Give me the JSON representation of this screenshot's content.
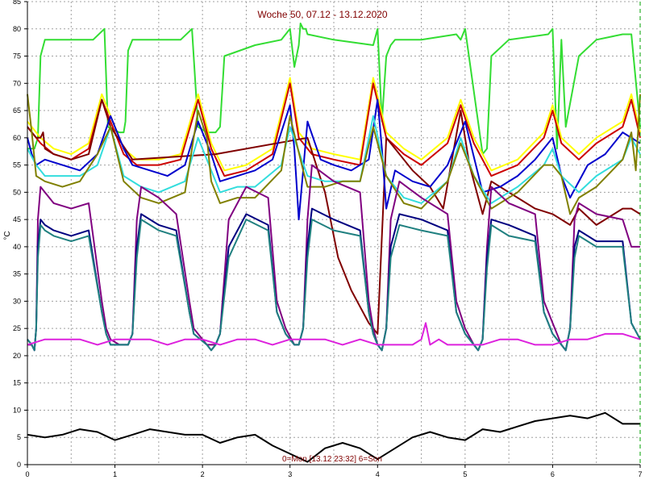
{
  "chart_data": {
    "type": "line",
    "title": "Woche 50, 07.12 - 13.12.2020",
    "ylabel": "°C",
    "footer": "0=Mon [13.12 23:32] 6=Son",
    "xlim": [
      0,
      7
    ],
    "ylim": [
      0,
      85
    ],
    "x_ticks": [
      0,
      1,
      2,
      3,
      4,
      5,
      6,
      7
    ],
    "y_ticks": [
      0,
      5,
      10,
      15,
      20,
      25,
      30,
      35,
      40,
      45,
      50,
      55,
      60,
      65,
      70,
      75,
      80,
      85
    ],
    "grid": true,
    "x_gridlines": [
      0.5,
      1,
      1.5,
      2,
      2.5,
      3,
      3.5,
      4,
      4.5,
      5,
      5.5,
      6,
      6.5
    ],
    "current_time_x": 7.0,
    "colors": {
      "axis": "#000000",
      "grid": "#a0a0a0",
      "title": "#800000",
      "now_line": "#00a000"
    },
    "series": [
      {
        "color": "#33dd33",
        "x": [
          0.0,
          0.08,
          0.12,
          0.15,
          0.2,
          0.45,
          0.75,
          0.88,
          0.92,
          1.05,
          1.1,
          1.12,
          1.15,
          1.2,
          1.45,
          1.75,
          1.88,
          1.95,
          2.05,
          2.15,
          2.2,
          2.25,
          2.6,
          2.9,
          3.0,
          3.05,
          3.1,
          3.12,
          3.15,
          3.18,
          3.2,
          3.5,
          3.95,
          4.0,
          4.05,
          4.1,
          4.15,
          4.2,
          4.5,
          4.9,
          4.95,
          5.0,
          5.2,
          5.25,
          5.3,
          5.5,
          5.95,
          6.0,
          6.05,
          6.1,
          6.15,
          6.3,
          6.5,
          6.8,
          6.9,
          7.0
        ],
        "y": [
          58,
          58,
          60,
          75,
          78,
          78,
          78,
          80,
          62,
          61,
          61,
          63,
          76,
          78,
          78,
          78,
          80,
          62,
          61,
          61,
          62,
          75,
          77,
          78,
          80,
          73,
          77,
          81,
          80,
          80,
          79,
          78,
          77,
          80,
          63,
          75,
          77,
          78,
          78,
          79,
          78,
          80,
          57,
          58,
          75,
          78,
          79,
          80,
          58,
          78,
          62,
          75,
          78,
          79,
          79,
          62
        ]
      },
      {
        "color": "#ffff00",
        "x": [
          0.0,
          0.1,
          0.15,
          0.3,
          0.5,
          0.7,
          0.85,
          0.95,
          1.1,
          1.25,
          1.5,
          1.75,
          1.95,
          2.1,
          2.25,
          2.5,
          2.8,
          3.0,
          3.1,
          3.25,
          3.5,
          3.8,
          3.95,
          4.1,
          4.3,
          4.5,
          4.8,
          4.95,
          5.1,
          5.3,
          5.6,
          5.9,
          6.0,
          6.1,
          6.3,
          6.5,
          6.8,
          6.9,
          7.0
        ],
        "y": [
          63,
          61,
          60,
          58,
          57,
          59,
          68,
          64,
          58,
          56,
          56,
          57,
          68,
          59,
          54,
          55,
          58,
          71,
          61,
          58,
          57,
          56,
          71,
          61,
          58,
          56,
          60,
          67,
          60,
          54,
          56,
          61,
          66,
          60,
          57,
          60,
          63,
          68,
          61
        ]
      },
      {
        "color": "#cc0000",
        "x": [
          0.0,
          0.1,
          0.15,
          0.3,
          0.5,
          0.7,
          0.85,
          0.95,
          1.1,
          1.25,
          1.5,
          1.75,
          1.95,
          2.1,
          2.25,
          2.5,
          2.8,
          3.0,
          3.1,
          3.25,
          3.5,
          3.8,
          3.95,
          4.1,
          4.3,
          4.5,
          4.8,
          4.95,
          5.1,
          5.3,
          5.6,
          5.9,
          6.0,
          6.1,
          6.3,
          6.5,
          6.8,
          6.9,
          7.0
        ],
        "y": [
          62,
          60,
          59,
          57,
          56,
          58,
          67,
          63,
          57,
          55,
          55,
          56,
          67,
          58,
          53,
          54,
          57,
          70,
          60,
          57,
          56,
          55,
          70,
          60,
          57,
          55,
          59,
          66,
          59,
          53,
          55,
          60,
          65,
          59,
          56,
          59,
          62,
          67,
          60
        ]
      },
      {
        "color": "#800000",
        "x": [
          0.0,
          0.05,
          0.1,
          0.15,
          0.18,
          0.2,
          0.3,
          0.5,
          0.7,
          0.85,
          0.95,
          1.2,
          2.15,
          3.2,
          3.4,
          3.55,
          3.7,
          3.9,
          4.0,
          4.1,
          4.2,
          4.4,
          4.6,
          4.75,
          4.95,
          5.05,
          5.2,
          5.3,
          5.5,
          5.8,
          6.0,
          6.1,
          6.2,
          6.3,
          6.5,
          6.8,
          6.9,
          7.0
        ],
        "y": [
          62,
          61,
          60,
          60,
          61,
          58,
          57,
          56,
          57,
          67,
          62,
          56,
          57,
          60,
          50,
          38,
          32,
          26,
          24,
          60,
          58,
          54,
          51,
          47,
          65,
          55,
          46,
          52,
          50,
          47,
          46,
          45,
          44,
          47,
          44,
          47,
          47,
          46
        ]
      },
      {
        "color": "#0000cc",
        "x": [
          0.0,
          0.05,
          0.1,
          0.2,
          0.4,
          0.6,
          0.8,
          0.95,
          1.1,
          1.2,
          1.4,
          1.6,
          1.8,
          1.95,
          2.1,
          2.2,
          2.4,
          2.6,
          2.8,
          3.0,
          3.05,
          3.1,
          3.2,
          3.35,
          3.5,
          3.7,
          3.9,
          4.0,
          4.05,
          4.1,
          4.2,
          4.4,
          4.6,
          4.8,
          5.0,
          5.2,
          5.4,
          5.6,
          5.8,
          6.0,
          6.1,
          6.2,
          6.4,
          6.6,
          6.8,
          7.0
        ],
        "y": [
          60,
          57,
          55,
          56,
          55,
          54,
          57,
          64,
          58,
          55,
          54,
          53,
          55,
          63,
          57,
          52,
          53,
          54,
          56,
          66,
          58,
          45,
          63,
          56,
          55,
          54,
          56,
          67,
          58,
          47,
          54,
          52,
          51,
          55,
          63,
          50,
          51,
          53,
          56,
          60,
          53,
          49,
          55,
          57,
          61,
          59
        ]
      },
      {
        "color": "#33dddd",
        "x": [
          0.0,
          0.1,
          0.2,
          0.4,
          0.6,
          0.8,
          0.95,
          1.1,
          1.3,
          1.5,
          1.8,
          1.95,
          2.1,
          2.2,
          2.4,
          2.6,
          2.9,
          3.0,
          3.2,
          3.4,
          3.6,
          3.8,
          3.95,
          4.1,
          4.3,
          4.5,
          4.8,
          4.95,
          5.1,
          5.3,
          5.6,
          5.9,
          6.0,
          6.1,
          6.3,
          6.5,
          6.8,
          6.9,
          7.0
        ],
        "y": [
          58,
          55,
          53,
          53,
          53,
          55,
          62,
          53,
          51,
          50,
          52,
          60,
          54,
          50,
          51,
          51,
          55,
          62,
          53,
          52,
          52,
          52,
          64,
          53,
          49,
          48,
          52,
          60,
          53,
          48,
          51,
          55,
          58,
          53,
          50,
          53,
          56,
          60,
          57
        ]
      },
      {
        "color": "#808000",
        "x": [
          0.0,
          0.05,
          0.1,
          0.2,
          0.4,
          0.6,
          0.8,
          0.95,
          1.1,
          1.3,
          1.5,
          1.8,
          1.95,
          2.05,
          2.1,
          2.2,
          2.4,
          2.6,
          2.9,
          3.0,
          3.15,
          3.2,
          3.4,
          3.6,
          3.8,
          3.95,
          4.1,
          4.3,
          4.5,
          4.8,
          4.95,
          5.1,
          5.3,
          5.6,
          5.9,
          6.0,
          6.1,
          6.2,
          6.3,
          6.5,
          6.8,
          6.9,
          6.95,
          7.0
        ],
        "y": [
          68,
          61,
          53,
          52,
          51,
          52,
          57,
          62,
          52,
          49,
          48,
          50,
          65,
          60,
          52,
          48,
          49,
          49,
          54,
          64,
          54,
          51,
          51,
          52,
          52,
          62,
          53,
          48,
          47,
          52,
          59,
          53,
          47,
          50,
          55,
          55,
          53,
          46,
          49,
          51,
          56,
          61,
          54,
          68
        ]
      },
      {
        "color": "#800080",
        "x": [
          0.0,
          0.05,
          0.08,
          0.1,
          0.12,
          0.15,
          0.2,
          0.3,
          0.5,
          0.7,
          0.85,
          0.9,
          0.95,
          1.05,
          1.15,
          1.2,
          1.25,
          1.3,
          1.5,
          1.7,
          1.85,
          1.9,
          2.05,
          2.1,
          2.15,
          2.2,
          2.3,
          2.5,
          2.75,
          2.85,
          2.95,
          3.05,
          3.1,
          3.15,
          3.2,
          3.25,
          3.5,
          3.8,
          3.9,
          3.95,
          4.0,
          4.05,
          4.1,
          4.15,
          4.25,
          4.5,
          4.8,
          4.9,
          5.0,
          5.1,
          5.15,
          5.2,
          5.25,
          5.3,
          5.5,
          5.8,
          5.9,
          6.0,
          6.1,
          6.15,
          6.2,
          6.25,
          6.3,
          6.5,
          6.8,
          6.9,
          7.0
        ],
        "y": [
          22,
          22,
          21,
          25,
          45,
          51,
          50,
          48,
          47,
          48,
          30,
          25,
          23,
          22,
          22,
          24,
          45,
          51,
          49,
          46,
          30,
          25,
          22,
          22,
          22,
          24,
          45,
          51,
          49,
          30,
          25,
          22,
          22,
          25,
          45,
          55,
          52,
          50,
          30,
          25,
          22,
          21,
          25,
          45,
          52,
          49,
          46,
          30,
          25,
          22,
          21,
          23,
          40,
          51,
          48,
          46,
          30,
          26,
          22,
          21,
          25,
          45,
          48,
          46,
          45,
          40,
          40
        ]
      },
      {
        "color": "#000080",
        "x": [
          0.0,
          0.05,
          0.08,
          0.1,
          0.12,
          0.15,
          0.2,
          0.3,
          0.5,
          0.7,
          0.85,
          0.9,
          0.95,
          1.05,
          1.15,
          1.2,
          1.25,
          1.3,
          1.5,
          1.7,
          1.85,
          1.9,
          2.05,
          2.1,
          2.15,
          2.2,
          2.3,
          2.5,
          2.75,
          2.85,
          2.95,
          3.05,
          3.1,
          3.15,
          3.2,
          3.25,
          3.5,
          3.8,
          3.9,
          3.95,
          4.0,
          4.05,
          4.1,
          4.15,
          4.25,
          4.5,
          4.8,
          4.9,
          5.0,
          5.1,
          5.15,
          5.2,
          5.25,
          5.3,
          5.5,
          5.8,
          5.9,
          6.0,
          6.1,
          6.15,
          6.2,
          6.25,
          6.3,
          6.5,
          6.8,
          6.9,
          7.0
        ],
        "y": [
          23,
          22,
          21,
          25,
          40,
          45,
          44,
          43,
          42,
          43,
          28,
          24,
          22,
          22,
          22,
          24,
          40,
          46,
          44,
          43,
          28,
          24,
          22,
          21,
          22,
          24,
          40,
          46,
          44,
          28,
          24,
          22,
          22,
          25,
          40,
          47,
          45,
          43,
          28,
          24,
          22,
          21,
          25,
          40,
          46,
          45,
          43,
          28,
          24,
          22,
          21,
          23,
          38,
          45,
          44,
          42,
          28,
          24,
          22,
          21,
          25,
          40,
          43,
          41,
          41,
          26,
          23
        ]
      },
      {
        "color": "#208080",
        "x": [
          0.0,
          0.05,
          0.08,
          0.1,
          0.12,
          0.15,
          0.2,
          0.3,
          0.5,
          0.7,
          0.85,
          0.9,
          0.95,
          1.05,
          1.15,
          1.2,
          1.25,
          1.3,
          1.5,
          1.7,
          1.85,
          1.9,
          2.05,
          2.1,
          2.15,
          2.2,
          2.3,
          2.5,
          2.75,
          2.85,
          2.95,
          3.05,
          3.1,
          3.15,
          3.2,
          3.25,
          3.5,
          3.8,
          3.9,
          3.95,
          4.0,
          4.05,
          4.1,
          4.15,
          4.25,
          4.5,
          4.8,
          4.9,
          5.0,
          5.1,
          5.15,
          5.2,
          5.25,
          5.3,
          5.5,
          5.8,
          5.9,
          6.0,
          6.1,
          6.15,
          6.2,
          6.25,
          6.3,
          6.5,
          6.8,
          6.9,
          7.0
        ],
        "y": [
          23,
          22,
          21,
          25,
          38,
          44,
          43,
          42,
          41,
          42,
          28,
          24,
          22,
          22,
          22,
          24,
          38,
          45,
          43,
          42,
          28,
          24,
          22,
          21,
          22,
          24,
          38,
          45,
          43,
          28,
          24,
          22,
          22,
          25,
          38,
          45,
          43,
          42,
          28,
          24,
          22,
          21,
          25,
          38,
          44,
          43,
          42,
          28,
          24,
          22,
          21,
          23,
          36,
          44,
          42,
          41,
          28,
          24,
          22,
          21,
          25,
          38,
          42,
          40,
          40,
          26,
          23
        ]
      },
      {
        "color": "#dd22dd",
        "x": [
          0.0,
          0.2,
          0.4,
          0.6,
          0.8,
          1.0,
          1.2,
          1.4,
          1.6,
          1.8,
          2.0,
          2.2,
          2.4,
          2.6,
          2.8,
          3.0,
          3.2,
          3.4,
          3.6,
          3.8,
          4.0,
          4.2,
          4.4,
          4.5,
          4.55,
          4.6,
          4.7,
          4.8,
          5.0,
          5.2,
          5.4,
          5.6,
          5.8,
          6.0,
          6.2,
          6.4,
          6.6,
          6.8,
          7.0
        ],
        "y": [
          22,
          23,
          23,
          23,
          22,
          23,
          23,
          23,
          22,
          23,
          23,
          22,
          23,
          23,
          22,
          23,
          23,
          23,
          22,
          23,
          22,
          22,
          22,
          23,
          26,
          22,
          23,
          22,
          22,
          22,
          23,
          23,
          22,
          22,
          23,
          23,
          24,
          24,
          23
        ]
      },
      {
        "color": "#000000",
        "x": [
          0.0,
          0.2,
          0.4,
          0.6,
          0.8,
          1.0,
          1.2,
          1.4,
          1.6,
          1.8,
          2.0,
          2.2,
          2.4,
          2.6,
          2.8,
          3.0,
          3.2,
          3.4,
          3.6,
          3.8,
          4.0,
          4.2,
          4.4,
          4.6,
          4.8,
          5.0,
          5.2,
          5.4,
          5.6,
          5.8,
          6.0,
          6.2,
          6.4,
          6.6,
          6.8,
          7.0
        ],
        "y": [
          5.5,
          5.0,
          5.5,
          6.5,
          6.0,
          4.5,
          5.5,
          6.5,
          6.0,
          5.5,
          5.5,
          4.0,
          5.0,
          5.5,
          3.5,
          2.0,
          0.5,
          3.0,
          4.0,
          3.0,
          1.0,
          3.0,
          5.0,
          6.0,
          5.0,
          4.5,
          6.5,
          6.0,
          7.0,
          8.0,
          8.5,
          9.0,
          8.5,
          9.5,
          7.5,
          7.5
        ]
      }
    ]
  }
}
